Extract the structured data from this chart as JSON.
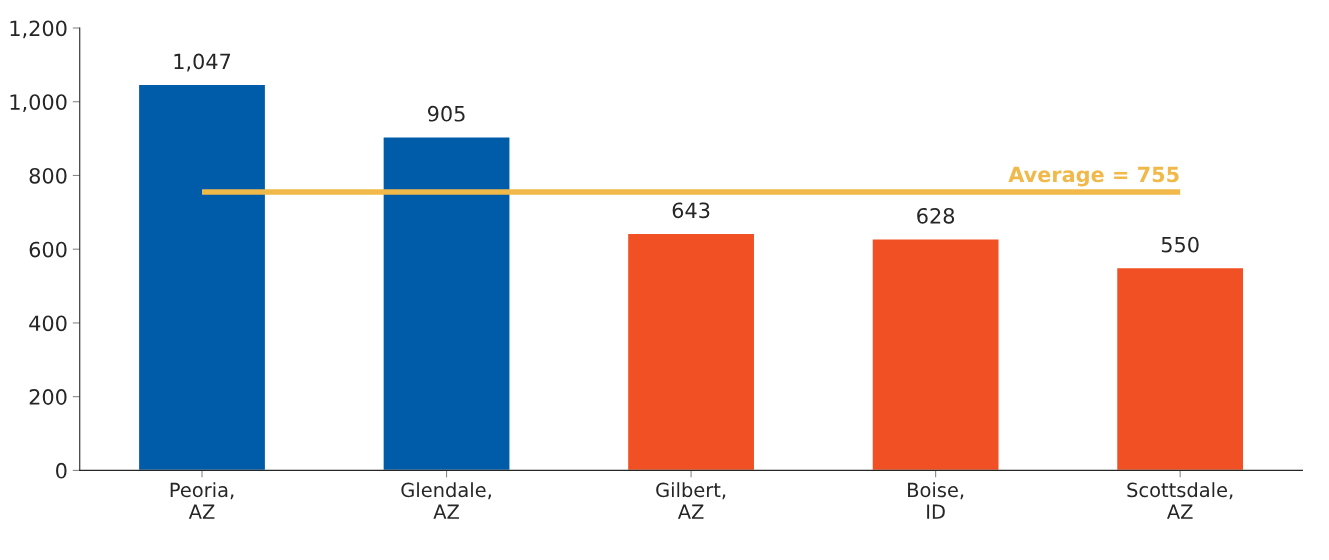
{
  "chart_data": {
    "type": "bar",
    "categories": [
      "Peoria,\nAZ",
      "Glendale,\nAZ",
      "Gilbert,\nAZ",
      "Boise,\nID",
      "Scottsdale,\nAZ"
    ],
    "values": [
      1047,
      905,
      643,
      628,
      550
    ],
    "colors": [
      "#005ca8",
      "#005ca8",
      "#f05023",
      "#f05023",
      "#f05023"
    ],
    "value_labels": [
      "1,047",
      "905",
      "643",
      "628",
      "550"
    ],
    "ylim": [
      0,
      1200
    ],
    "yticks": [
      0,
      {
        "value": 200,
        "label": "200"
      },
      {
        "value": 400,
        "label": "400"
      },
      {
        "value": 600,
        "label": "600"
      },
      {
        "value": 800,
        "label": "800"
      },
      {
        "value": 1000,
        "label": "1,000"
      },
      {
        "value": 1200,
        "label": "1,200"
      }
    ],
    "ref_lines": [
      {
        "axis": "y",
        "value": 755,
        "label": "Average = 755",
        "color": "#f0b94a"
      }
    ],
    "grid": false,
    "legend": false
  }
}
